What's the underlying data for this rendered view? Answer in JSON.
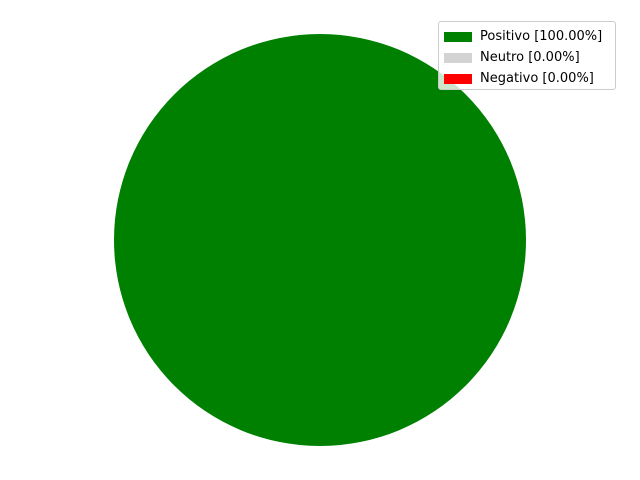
{
  "chart_data": {
    "type": "pie",
    "slices": [
      {
        "label": "Positivo",
        "value": 100.0,
        "color": "#008000",
        "legend_text": "Positivo [100.00%]"
      },
      {
        "label": "Neutro",
        "value": 0.0,
        "color": "#d3d3d3",
        "legend_text": "Neutro [0.00%]"
      },
      {
        "label": "Negativo",
        "value": 0.0,
        "color": "#ff0000",
        "legend_text": "Negativo [0.00%]"
      }
    ],
    "legend_position": "top-right",
    "grid": false
  }
}
